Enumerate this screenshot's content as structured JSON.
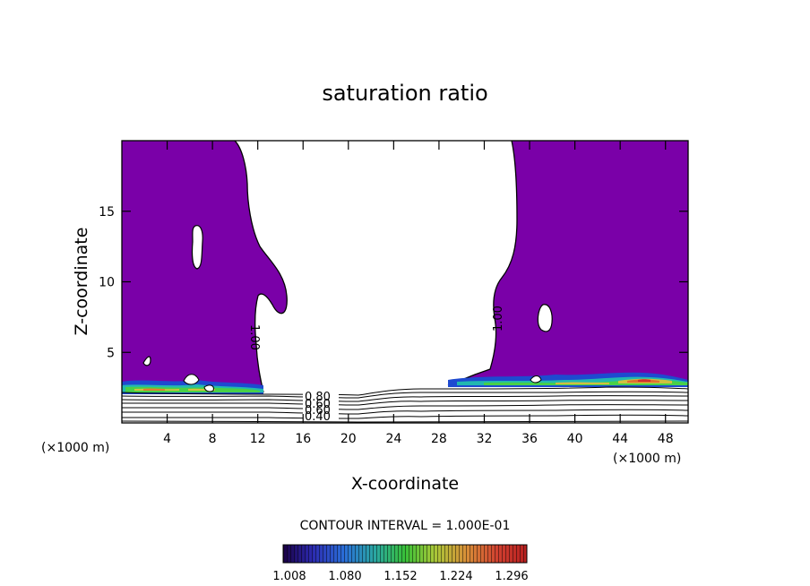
{
  "chart_data": {
    "type": "contour",
    "title": "saturation ratio",
    "xlabel": "X-coordinate",
    "ylabel": "Z-coordinate",
    "x_unit_left": "(×1000 m)",
    "x_unit_right": "(×1000 m)",
    "xlim": [
      0,
      50
    ],
    "ylim": [
      0,
      20
    ],
    "x_ticks": [
      4,
      8,
      12,
      16,
      20,
      24,
      28,
      32,
      36,
      40,
      44,
      48
    ],
    "y_ticks": [
      5,
      10,
      15
    ],
    "contour_labels": [
      "1.00",
      "1.00",
      "0.80",
      "0.60",
      "0.60",
      "0.40"
    ],
    "fill_color": "#7a00a8",
    "contour_interval_text": "CONTOUR INTERVAL = 1.000E-01",
    "colorbar_labels": [
      "1.008",
      "1.080",
      "1.152",
      "1.224",
      "1.296"
    ]
  }
}
